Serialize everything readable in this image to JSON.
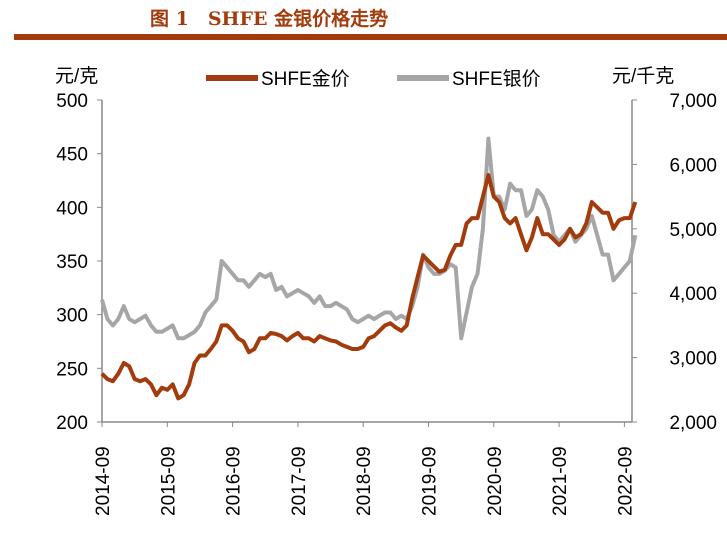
{
  "title": "图 1　SHFE 金银价格走势",
  "chart_data": {
    "type": "line",
    "title": "图 1　SHFE 金银价格走势",
    "left_unit": "元/克",
    "right_unit": "元/千克",
    "left_ylim": [
      200,
      500
    ],
    "left_ticks": [
      "200",
      "250",
      "300",
      "350",
      "400",
      "450",
      "500"
    ],
    "right_ylim": [
      2000,
      7000
    ],
    "right_ticks": [
      "2,000",
      "3,000",
      "4,000",
      "5,000",
      "6,000",
      "7,000"
    ],
    "x_ticks": [
      "2014-09",
      "2015-09",
      "2016-09",
      "2017-09",
      "2018-09",
      "2019-09",
      "2020-09",
      "2021-09",
      "2022-09"
    ],
    "x_start": "2014-09",
    "x_frequency": "monthly",
    "legend_placement": "top",
    "colors": {
      "gold": "#a23c0c",
      "silver": "#a6a6a6"
    },
    "series": [
      {
        "name": "SHFE金价",
        "axis": "left",
        "values": [
          245,
          240,
          238,
          245,
          255,
          252,
          240,
          238,
          240,
          235,
          225,
          232,
          230,
          235,
          222,
          225,
          235,
          255,
          262,
          262,
          268,
          275,
          290,
          290,
          285,
          278,
          275,
          265,
          268,
          278,
          278,
          283,
          282,
          280,
          276,
          280,
          283,
          278,
          278,
          275,
          280,
          278,
          276,
          275,
          272,
          270,
          268,
          268,
          270,
          278,
          280,
          285,
          290,
          292,
          288,
          285,
          290,
          315,
          335,
          355,
          350,
          345,
          340,
          342,
          355,
          365,
          365,
          385,
          390,
          390,
          410,
          430,
          410,
          405,
          390,
          385,
          390,
          375,
          360,
          372,
          390,
          375,
          375,
          370,
          365,
          370,
          380,
          372,
          375,
          385,
          405,
          400,
          395,
          395,
          380,
          388,
          390,
          390,
          405
        ]
      },
      {
        "name": "SHFE银价",
        "axis": "right",
        "values": [
          3900,
          3600,
          3500,
          3600,
          3800,
          3600,
          3550,
          3600,
          3650,
          3500,
          3400,
          3400,
          3450,
          3500,
          3300,
          3300,
          3350,
          3400,
          3500,
          3700,
          3800,
          3900,
          4500,
          4400,
          4300,
          4200,
          4200,
          4100,
          4200,
          4300,
          4250,
          4300,
          4050,
          4100,
          3950,
          4000,
          4050,
          4000,
          3950,
          3850,
          3950,
          3800,
          3800,
          3850,
          3800,
          3750,
          3600,
          3550,
          3600,
          3650,
          3600,
          3650,
          3700,
          3700,
          3600,
          3650,
          3600,
          3800,
          4100,
          4600,
          4400,
          4300,
          4300,
          4350,
          4450,
          4400,
          3300,
          3700,
          4100,
          4300,
          5000,
          6400,
          5500,
          5500,
          5300,
          5700,
          5600,
          5600,
          5200,
          5300,
          5600,
          5500,
          5300,
          4900,
          4800,
          4900,
          5000,
          4800,
          4900,
          5000,
          5200,
          4900,
          4600,
          4600,
          4200,
          4300,
          4400,
          4500,
          4900
        ]
      }
    ]
  }
}
